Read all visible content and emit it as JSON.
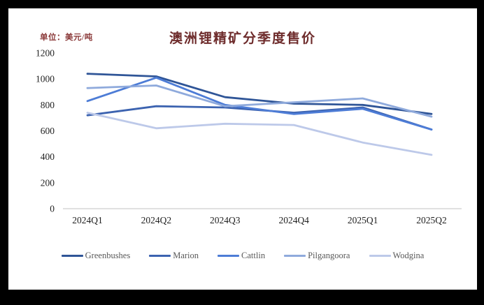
{
  "page": {
    "title": "澳洲锂精矿分季度售价",
    "unit_label": "单位：美元/吨"
  },
  "chart_data": {
    "type": "line",
    "title": "澳洲锂精矿分季度售价",
    "unit": "单位：美元/吨",
    "categories": [
      "2024Q1",
      "2024Q2",
      "2024Q3",
      "2024Q4",
      "2025Q1",
      "2025Q2"
    ],
    "series": [
      {
        "name": "Greenbushes",
        "color": "#2F5597",
        "values": [
          1040,
          1020,
          860,
          810,
          800,
          730
        ]
      },
      {
        "name": "Marion",
        "color": "#3C63B0",
        "values": [
          720,
          790,
          780,
          740,
          780,
          610
        ]
      },
      {
        "name": "Cattlin",
        "color": "#4D7CD6",
        "values": [
          830,
          1010,
          800,
          730,
          770,
          610
        ]
      },
      {
        "name": "Pilgangoora",
        "color": "#8FAADC",
        "values": [
          930,
          950,
          790,
          820,
          850,
          710
        ]
      },
      {
        "name": "Wodgina",
        "color": "#BDC9E9",
        "values": [
          740,
          620,
          655,
          645,
          510,
          415
        ]
      }
    ],
    "ylim": [
      0,
      1200
    ],
    "yticks": [
      0,
      200,
      400,
      600,
      800,
      1000,
      1200
    ],
    "grid": false,
    "legend_position": "bottom"
  },
  "colors": {
    "frame": "#000000",
    "background": "#ffffff",
    "axis_line": "#d6d6d6",
    "title_color": "#6e2c2c",
    "unit_color": "#8b3a3a",
    "tick_text": "#1f1f1f",
    "legend_text": "#595959"
  }
}
